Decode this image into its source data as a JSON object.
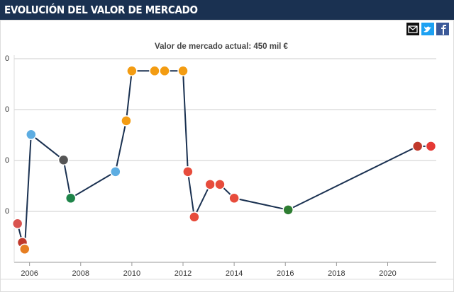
{
  "title": "EVOLUCIÓN DEL VALOR DE MERCADO",
  "chart_data": {
    "type": "line",
    "subtitle": "Valor de mercado actual: 450 mil €",
    "xlim": [
      2005.4,
      2021.9
    ],
    "xticks": [
      2006,
      2008,
      2010,
      2012,
      2014,
      2016,
      2018,
      2020
    ],
    "ylim": [
      0,
      4
    ],
    "yticks": [
      {
        "value": 1,
        "label": "0"
      },
      {
        "value": 2,
        "label": "0"
      },
      {
        "value": 3,
        "label": "0"
      },
      {
        "value": 4,
        "label": "0"
      }
    ],
    "grid": true,
    "series": [
      {
        "color": "#1a3151",
        "x": [
          2005.53,
          2005.72,
          2005.81,
          2006.06,
          2007.33,
          2007.61,
          2009.36,
          2009.78,
          2010.0,
          2010.89,
          2011.28,
          2012.0,
          2012.19,
          2012.44,
          2013.06,
          2013.44,
          2014.0,
          2016.11,
          2021.17,
          2021.69
        ],
        "values": [
          0.76,
          0.39,
          0.26,
          2.51,
          2.01,
          1.26,
          1.78,
          2.78,
          3.76,
          3.76,
          3.76,
          3.76,
          1.78,
          0.89,
          1.53,
          1.53,
          1.26,
          1.03,
          2.28,
          2.28
        ],
        "marker_colors": [
          "#d9534f",
          "#c0392b",
          "#e67e22",
          "#5dade2",
          "#555555",
          "#1e8449",
          "#5dade2",
          "#f39c12",
          "#f39c12",
          "#f39c12",
          "#f39c12",
          "#f39c12",
          "#e74c3c",
          "#e74c3c",
          "#e74c3c",
          "#e74c3c",
          "#e74c3c",
          "#2e7d32",
          "#c0392b",
          "#e53935"
        ]
      }
    ]
  }
}
